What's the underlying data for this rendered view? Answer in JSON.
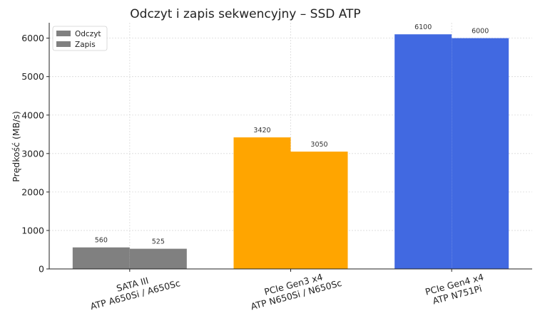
{
  "chart_data": {
    "type": "bar",
    "title": "Odczyt i zapis sekwencyjny – SSD ATP",
    "xlabel": "",
    "ylabel": "Prędkość (MB/s)",
    "ylim": [
      0,
      6400
    ],
    "yticks": [
      0,
      1000,
      2000,
      3000,
      4000,
      5000,
      6000
    ],
    "grid": true,
    "legend_position": "top-left",
    "categories": [
      [
        "SATA III",
        "ATP A650Si / A650Sc"
      ],
      [
        "PCIe Gen3 x4",
        "ATP N650Si / N650Sc"
      ],
      [
        "PCIe Gen4 x4",
        "ATP N751Pi"
      ]
    ],
    "category_colors": [
      "#808080",
      "#ffa500",
      "#4169e1"
    ],
    "legend_color": "#808080",
    "series": [
      {
        "name": "Odczyt",
        "values": [
          560,
          3420,
          6100
        ]
      },
      {
        "name": "Zapis",
        "values": [
          525,
          3050,
          6000
        ]
      }
    ]
  }
}
